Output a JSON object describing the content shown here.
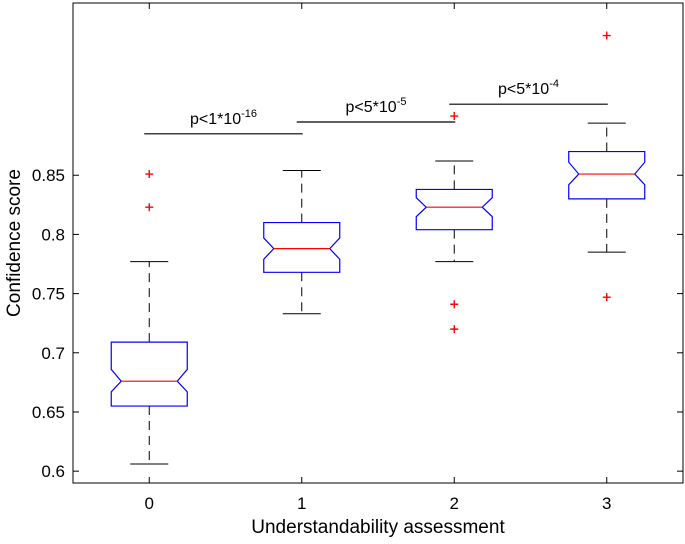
{
  "chart_data": {
    "type": "box",
    "xlabel": "Understandability assessment",
    "ylabel": "Confidence score",
    "ylim": [
      0.59,
      0.9955
    ],
    "xlim": [
      -0.5,
      3.5
    ],
    "yticks": [
      0.6,
      0.65,
      0.7,
      0.75,
      0.8,
      0.85
    ],
    "ytick_labels": [
      "0.6",
      "0.65",
      "0.7",
      "0.75",
      "0.8",
      "0.85"
    ],
    "categories": [
      "0",
      "1",
      "2",
      "3"
    ],
    "grid": false,
    "colors": {
      "box": "#0000ff",
      "median": "#ff0000",
      "whisker": "#000000",
      "outlier": "#ff0000"
    },
    "boxes": [
      {
        "x": "0",
        "whisker_low": 0.606,
        "q1": 0.655,
        "median": 0.676,
        "q3": 0.709,
        "whisker_high": 0.777,
        "notch_low": 0.667,
        "notch_high": 0.686,
        "outliers": [
          0.823,
          0.851
        ]
      },
      {
        "x": "1",
        "whisker_low": 0.733,
        "q1": 0.768,
        "median": 0.788,
        "q3": 0.81,
        "whisker_high": 0.854,
        "notch_low": 0.779,
        "notch_high": 0.797,
        "outliers": []
      },
      {
        "x": "2",
        "whisker_low": 0.777,
        "q1": 0.804,
        "median": 0.823,
        "q3": 0.838,
        "whisker_high": 0.862,
        "notch_low": 0.815,
        "notch_high": 0.831,
        "outliers": [
          0.72,
          0.741,
          0.9
        ]
      },
      {
        "x": "3",
        "whisker_low": 0.785,
        "q1": 0.83,
        "median": 0.851,
        "q3": 0.87,
        "whisker_high": 0.894,
        "notch_low": 0.842,
        "notch_high": 0.861,
        "outliers": [
          0.747,
          0.968
        ]
      }
    ],
    "annotations": [
      {
        "from": "0",
        "to": "1",
        "y": 0.885,
        "base": "p<1*10",
        "exponent": "-16"
      },
      {
        "from": "1",
        "to": "2",
        "y": 0.895,
        "base": "p<5*10",
        "exponent": "-5"
      },
      {
        "from": "2",
        "to": "3",
        "y": 0.91,
        "base": "p<5*10",
        "exponent": "-4"
      }
    ]
  }
}
